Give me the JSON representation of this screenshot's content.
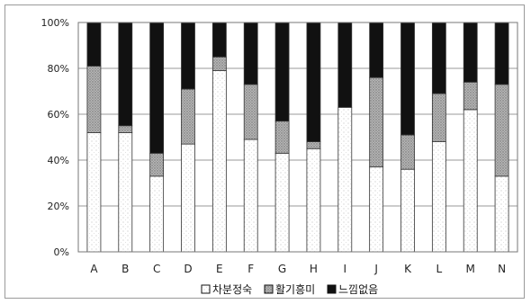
{
  "chart_data": {
    "type": "bar",
    "stacked": true,
    "orientation": "vertical",
    "normalized_percent": true,
    "categories": [
      "A",
      "B",
      "C",
      "D",
      "E",
      "F",
      "G",
      "H",
      "I",
      "J",
      "K",
      "L",
      "M",
      "N"
    ],
    "series": [
      {
        "name": "차분정숙",
        "color": "#ffffff",
        "pattern": "dots-light",
        "values": [
          52,
          52,
          33,
          47,
          79,
          49,
          43,
          45,
          63,
          37,
          36,
          48,
          62,
          33
        ]
      },
      {
        "name": "활기흥미",
        "color": "#a8a8a8",
        "pattern": "dots-dense",
        "values": [
          29,
          3,
          10,
          24,
          6,
          24,
          14,
          3,
          0,
          39,
          15,
          21,
          12,
          40
        ]
      },
      {
        "name": "느낌없음",
        "color": "#111111",
        "pattern": "solid",
        "values": [
          19,
          45,
          57,
          29,
          15,
          27,
          43,
          52,
          37,
          24,
          49,
          31,
          26,
          27
        ]
      }
    ],
    "ylim": [
      0,
      100
    ],
    "y_ticks": [
      "0%",
      "20%",
      "40%",
      "60%",
      "80%",
      "100%"
    ],
    "y_tick_values": [
      0,
      20,
      40,
      60,
      80,
      100
    ],
    "grid": true,
    "legend_position": "bottom",
    "title": "",
    "xlabel": "",
    "ylabel": ""
  }
}
